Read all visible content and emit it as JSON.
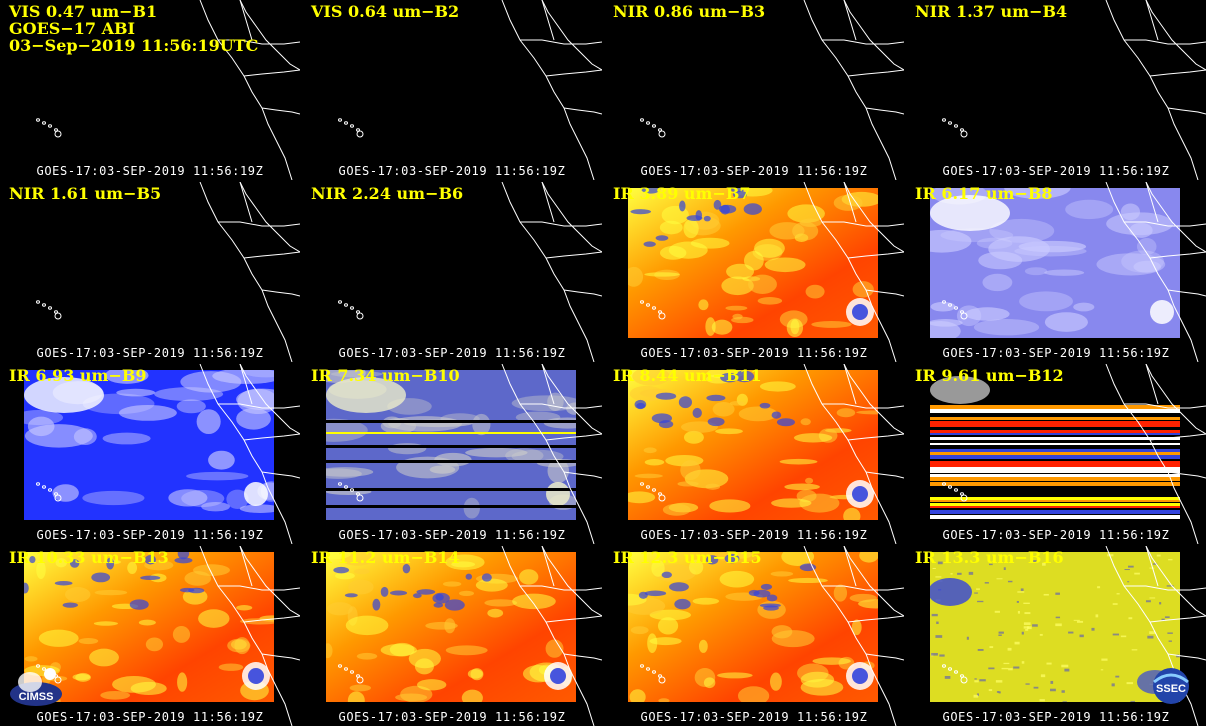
{
  "header": {
    "line2": "GOES−17 ABI",
    "line3": "03−Sep−2019 11:56:19UTC"
  },
  "timestamp": "GOES-17:03-SEP-2019 11:56:19Z",
  "panels": [
    {
      "label": "VIS 0.47 um−B1",
      "style": "black"
    },
    {
      "label": "VIS 0.64 um−B2",
      "style": "black"
    },
    {
      "label": "NIR 0.86 um−B3",
      "style": "black"
    },
    {
      "label": "NIR 1.37 um−B4",
      "style": "black"
    },
    {
      "label": "NIR 1.61 um−B5",
      "style": "black"
    },
    {
      "label": "NIR 2.24 um−B6",
      "style": "black"
    },
    {
      "label": "IR 3.89 um−B7",
      "style": "ir"
    },
    {
      "label": "IR 6.17 um−B8",
      "style": "wv-light"
    },
    {
      "label": "IR 6.93 um−B9",
      "style": "wv"
    },
    {
      "label": "IR 7.34 um−B10",
      "style": "wv-striped"
    },
    {
      "label": "IR 8.44 um−B11",
      "style": "ir"
    },
    {
      "label": "IR 9.61 um−B12",
      "style": "stripes"
    },
    {
      "label": "IR 10.33 um−B13",
      "style": "ir"
    },
    {
      "label": "IR 11.2 um−B14",
      "style": "ir"
    },
    {
      "label": "IR 12.3 um−B15",
      "style": "ir"
    },
    {
      "label": "IR 13.3 um−B16",
      "style": "yellow"
    }
  ],
  "logos": {
    "left": "CIMSS",
    "right": "SSEC"
  },
  "colors": {
    "label": "#ffff00",
    "stamp": "#ffffff",
    "ir_warm": "#ff4400",
    "ir_mid": "#ff9900",
    "ir_cold": "#ffff40",
    "wv_blue": "#2233ff",
    "wv_light": "#ccccff"
  }
}
